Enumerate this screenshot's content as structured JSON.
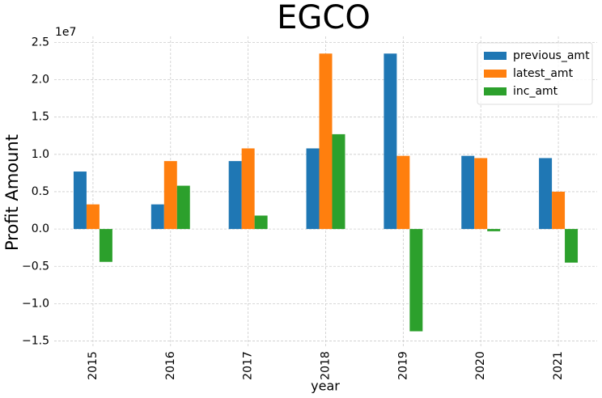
{
  "chart_data": {
    "type": "bar",
    "title": "EGCO",
    "x_label": "year",
    "y_label": "Profit Amount",
    "y_offset_label": "1e7",
    "categories": [
      "2015",
      "2016",
      "2017",
      "2018",
      "2019",
      "2020",
      "2021"
    ],
    "series": [
      {
        "name": "previous_amt",
        "color": "#1f77b4",
        "values": [
          0.77,
          0.33,
          0.91,
          1.08,
          2.35,
          0.98,
          0.95
        ]
      },
      {
        "name": "latest_amt",
        "color": "#ff7f0e",
        "values": [
          0.33,
          0.91,
          1.08,
          2.35,
          0.98,
          0.95,
          0.5
        ]
      },
      {
        "name": "inc_amt",
        "color": "#2ca02c",
        "values": [
          -0.44,
          0.58,
          0.18,
          1.27,
          -1.37,
          -0.03,
          -0.45
        ]
      }
    ],
    "ylim": [
      -1.57,
      2.58
    ],
    "yticks": [
      {
        "value": -1.5,
        "label": "−1.5"
      },
      {
        "value": -1.0,
        "label": "−1.0"
      },
      {
        "value": -0.5,
        "label": "−0.5"
      },
      {
        "value": 0.0,
        "label": "0.0"
      },
      {
        "value": 0.5,
        "label": "0.5"
      },
      {
        "value": 1.0,
        "label": "1.0"
      },
      {
        "value": 1.5,
        "label": "1.5"
      },
      {
        "value": 2.0,
        "label": "2.0"
      },
      {
        "value": 2.5,
        "label": "2.5"
      }
    ],
    "grid": true,
    "legend": "upper right"
  }
}
